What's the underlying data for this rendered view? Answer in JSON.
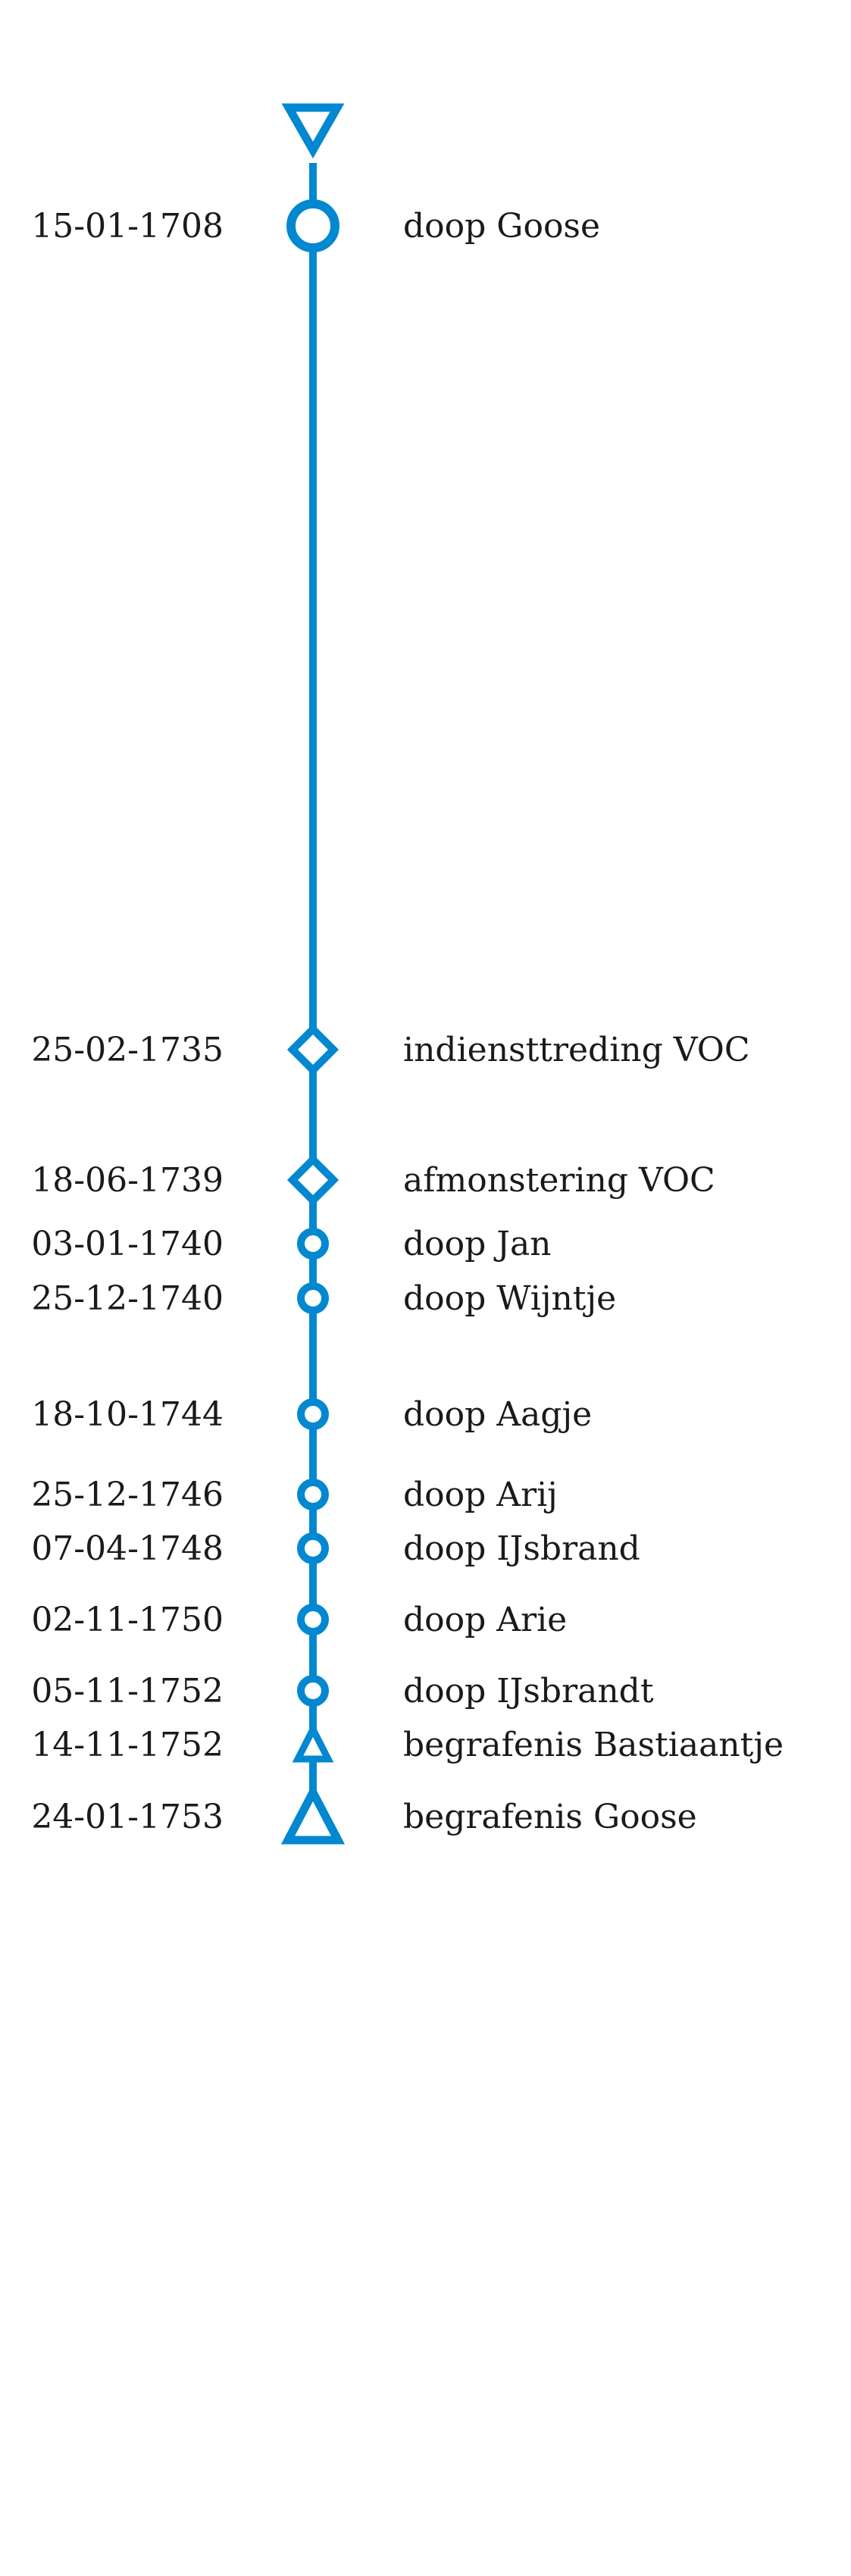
{
  "line_color": "#0288D1",
  "text_color": "#1a1a1a",
  "start_marker": "down-triangle-icon",
  "events": [
    {
      "date": "15-01-1708",
      "label": "doop Goose",
      "marker": "circle-icon"
    },
    {
      "date": "25-02-1735",
      "label": "indiensttreding VOC",
      "marker": "diamond-icon"
    },
    {
      "date": "18-06-1739",
      "label": "afmonstering VOC",
      "marker": "diamond-icon"
    },
    {
      "date": "03-01-1740",
      "label": "doop Jan",
      "marker": "small-circle-icon"
    },
    {
      "date": "25-12-1740",
      "label": "doop Wijntje",
      "marker": "small-circle-icon"
    },
    {
      "date": "18-10-1744",
      "label": "doop Aagje",
      "marker": "small-circle-icon"
    },
    {
      "date": "25-12-1746",
      "label": "doop Arij",
      "marker": "small-circle-icon"
    },
    {
      "date": "07-04-1748",
      "label": "doop IJsbrand",
      "marker": "small-circle-icon"
    },
    {
      "date": "02-11-1750",
      "label": "doop Arie",
      "marker": "small-circle-icon"
    },
    {
      "date": "05-11-1752",
      "label": "doop IJsbrandt",
      "marker": "small-circle-icon"
    },
    {
      "date": "14-11-1752",
      "label": "begrafenis Bastiaantje",
      "marker": "small-triangle-icon"
    },
    {
      "date": "24-01-1753",
      "label": "begrafenis Goose",
      "marker": "triangle-icon"
    }
  ]
}
